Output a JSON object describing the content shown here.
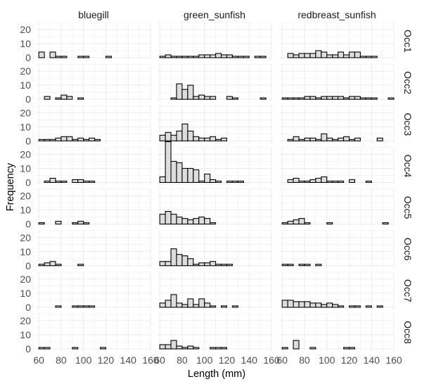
{
  "chart_data": {
    "type": "bar",
    "subtype": "faceted-histogram",
    "xlabel": "Length (mm)",
    "ylabel": "Frequency",
    "x_tick_labels": [
      "60",
      "80",
      "100",
      "120",
      "140",
      "160"
    ],
    "y_tick_labels": [
      "0",
      "10",
      "20"
    ],
    "xlim": [
      58,
      160
    ],
    "ylim": [
      0,
      29
    ],
    "bin_width": 5,
    "bin_starts": [
      60,
      65,
      70,
      75,
      80,
      85,
      90,
      95,
      100,
      105,
      110,
      115,
      120,
      125,
      130,
      135,
      140,
      145,
      150,
      155
    ],
    "grid": true,
    "bar_fill": "#dddddd",
    "bar_stroke": "#000000",
    "columns": [
      "bluegill",
      "green_sunfish",
      "redbreast_sunfish"
    ],
    "rows": [
      "Occ1",
      "Occ2",
      "Occ3",
      "Occ4",
      "Occ5",
      "Occ6",
      "Occ7",
      "Occ8"
    ],
    "panels": [
      [
        [
          4,
          0,
          4,
          1,
          1,
          0,
          0,
          1,
          1,
          0,
          0,
          0,
          1,
          0,
          0,
          0,
          0,
          0,
          0,
          0
        ],
        [
          1,
          2,
          1,
          1,
          1,
          1,
          1,
          2,
          2,
          2,
          3,
          2,
          2,
          1,
          1,
          1,
          0,
          1,
          1,
          0
        ],
        [
          0,
          3,
          2,
          3,
          3,
          3,
          5,
          4,
          2,
          2,
          4,
          2,
          4,
          4,
          1,
          1,
          1,
          0,
          0,
          0
        ]
      ],
      [
        [
          0,
          2,
          0,
          1,
          3,
          2,
          0,
          1,
          0,
          0,
          0,
          0,
          0,
          0,
          0,
          0,
          0,
          0,
          0,
          0
        ],
        [
          0,
          0,
          1,
          11,
          7,
          10,
          2,
          3,
          2,
          2,
          0,
          0,
          2,
          1,
          0,
          0,
          0,
          0,
          1,
          0
        ],
        [
          1,
          1,
          1,
          1,
          2,
          2,
          1,
          2,
          2,
          2,
          2,
          1,
          2,
          2,
          1,
          1,
          1,
          0,
          0,
          1
        ]
      ],
      [
        [
          1,
          1,
          1,
          2,
          3,
          3,
          1,
          2,
          1,
          2,
          1,
          0,
          0,
          0,
          0,
          0,
          0,
          0,
          0,
          0
        ],
        [
          4,
          6,
          4,
          7,
          12,
          7,
          3,
          2,
          2,
          3,
          1,
          2,
          0,
          0,
          0,
          0,
          0,
          0,
          0,
          0
        ],
        [
          0,
          1,
          3,
          1,
          2,
          2,
          1,
          5,
          2,
          1,
          2,
          3,
          1,
          2,
          0,
          0,
          0,
          2,
          0,
          0
        ]
      ],
      [
        [
          0,
          1,
          3,
          1,
          1,
          0,
          2,
          2,
          1,
          1,
          0,
          0,
          0,
          0,
          0,
          0,
          0,
          0,
          0,
          0
        ],
        [
          4,
          29,
          15,
          14,
          10,
          10,
          9,
          1,
          6,
          2,
          1,
          0,
          1,
          1,
          1,
          0,
          0,
          0,
          0,
          0
        ],
        [
          0,
          2,
          3,
          1,
          1,
          2,
          3,
          4,
          1,
          1,
          1,
          0,
          2,
          0,
          0,
          1,
          0,
          0,
          0,
          0
        ]
      ],
      [
        [
          1,
          0,
          0,
          2,
          0,
          0,
          1,
          2,
          1,
          0,
          0,
          0,
          0,
          0,
          0,
          0,
          0,
          0,
          0,
          0
        ],
        [
          7,
          9,
          7,
          5,
          4,
          3,
          4,
          5,
          4,
          1,
          0,
          0,
          0,
          0,
          0,
          0,
          0,
          0,
          0,
          0
        ],
        [
          1,
          2,
          3,
          4,
          1,
          0,
          0,
          0,
          1,
          0,
          0,
          0,
          0,
          0,
          0,
          0,
          0,
          0,
          1,
          0
        ]
      ],
      [
        [
          1,
          2,
          3,
          1,
          0,
          0,
          0,
          1,
          0,
          0,
          0,
          0,
          0,
          0,
          0,
          0,
          0,
          0,
          0,
          0
        ],
        [
          3,
          3,
          12,
          8,
          7,
          5,
          1,
          2,
          2,
          3,
          1,
          1,
          1,
          0,
          0,
          0,
          0,
          0,
          0,
          0
        ],
        [
          1,
          1,
          0,
          1,
          1,
          0,
          1,
          0,
          0,
          0,
          0,
          0,
          0,
          0,
          0,
          0,
          0,
          0,
          0,
          0
        ]
      ],
      [
        [
          0,
          0,
          0,
          1,
          0,
          0,
          1,
          1,
          1,
          1,
          0,
          0,
          0,
          0,
          0,
          0,
          0,
          0,
          0,
          0
        ],
        [
          3,
          5,
          9,
          3,
          2,
          6,
          2,
          6,
          3,
          1,
          0,
          1,
          0,
          1,
          0,
          0,
          0,
          0,
          0,
          0
        ],
        [
          5,
          5,
          4,
          4,
          4,
          3,
          3,
          2,
          3,
          2,
          1,
          0,
          1,
          1,
          0,
          1,
          0,
          1,
          0,
          0
        ]
      ],
      [
        [
          1,
          1,
          0,
          0,
          0,
          0,
          1,
          0,
          0,
          0,
          0,
          1,
          0,
          0,
          0,
          0,
          0,
          0,
          0,
          0
        ],
        [
          3,
          3,
          6,
          2,
          1,
          2,
          1,
          0,
          0,
          1,
          1,
          1,
          0,
          0,
          0,
          0,
          0,
          0,
          0,
          0
        ],
        [
          1,
          0,
          6,
          0,
          0,
          1,
          0,
          0,
          0,
          0,
          0,
          1,
          1,
          0,
          0,
          0,
          0,
          0,
          0,
          0
        ]
      ]
    ]
  }
}
